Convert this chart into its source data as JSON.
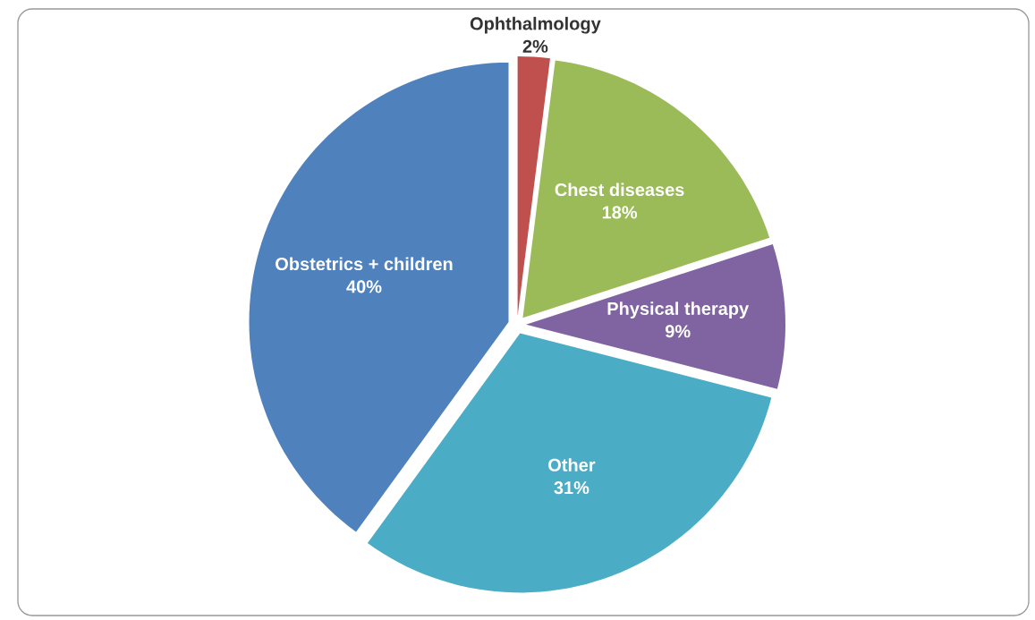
{
  "chart_data": {
    "type": "pie",
    "categories": [
      "Ophthalmology",
      "Chest diseases",
      "Physical therapy",
      "Other",
      "Obstetrics + children"
    ],
    "values": [
      2,
      18,
      9,
      31,
      40
    ],
    "value_labels": [
      "2%",
      "18%",
      "9%",
      "31%",
      "40%"
    ],
    "colors": [
      "#c0504d",
      "#9bbb59",
      "#8064a2",
      "#4bacc6",
      "#4f81bd"
    ]
  }
}
